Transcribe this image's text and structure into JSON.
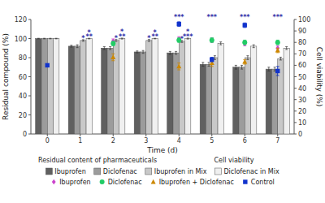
{
  "chart_data": {
    "type": "bar",
    "x": [
      0,
      1,
      2,
      3,
      4,
      5,
      6,
      7
    ],
    "xlabel": "Time (d)",
    "ylabel": "Residual compound (%)",
    "y2label": "Cell viability (%)",
    "xlim": [
      -0.5,
      7.5
    ],
    "xticks": [
      0,
      1,
      2,
      3,
      4,
      5,
      6,
      7
    ],
    "ylim": [
      0,
      120
    ],
    "yticks": [
      0,
      20,
      40,
      60,
      80,
      100,
      120
    ],
    "y2lim": [
      0,
      100
    ],
    "y2ticks": [
      0,
      10,
      20,
      30,
      40,
      50,
      60,
      70,
      80,
      90,
      100
    ],
    "grid": false,
    "legend": "bottom",
    "series": [
      {
        "name": "Ibuprofen",
        "type": "bar",
        "color": "#606060",
        "values": [
          100,
          92,
          90,
          86,
          85,
          73,
          70,
          68
        ],
        "errors": [
          0.3,
          1.0,
          1.5,
          1.0,
          1.5,
          2.0,
          2.0,
          2.0
        ]
      },
      {
        "name": "Diclofenac",
        "type": "bar",
        "color": "#9c9c9c",
        "values": [
          100,
          92,
          90,
          86,
          85,
          73,
          70,
          68
        ],
        "errors": [
          0.3,
          1.5,
          1.5,
          1.5,
          1.5,
          2.0,
          2.0,
          2.0
        ]
      },
      {
        "name": "Ibuprofen in Mix",
        "type": "bar",
        "color": "#c8c8c8",
        "values": [
          100,
          98,
          98,
          98,
          97,
          80,
          80,
          79
        ],
        "errors": [
          0.3,
          0.8,
          1.0,
          1.0,
          1.0,
          2.0,
          2.0,
          1.5
        ]
      },
      {
        "name": "Diclofenac in Mix",
        "type": "bar",
        "color": "#f0f0f0",
        "values": [
          100,
          100,
          100,
          100,
          100,
          95,
          92,
          90
        ],
        "errors": [
          0.3,
          0.3,
          0.5,
          0.3,
          0.5,
          1.5,
          1.5,
          1.5
        ]
      },
      {
        "name": "Ibuprofen",
        "type": "scatter",
        "axis": "y2",
        "marker": "diamond",
        "color": "#cc44cc",
        "x": [
          2,
          4,
          5,
          6,
          7
        ],
        "values": [
          81,
          83,
          82,
          79,
          75
        ],
        "errors": [
          2,
          2,
          2,
          2,
          2
        ]
      },
      {
        "name": "Diclofenac",
        "type": "scatter",
        "axis": "y2",
        "marker": "circle",
        "color": "#22cc66",
        "x": [
          2,
          4,
          5,
          6,
          7
        ],
        "values": [
          79,
          82,
          82,
          80,
          80
        ],
        "errors": [
          2,
          2,
          2,
          2,
          2
        ]
      },
      {
        "name": "Ibuprofen + Diclofenac",
        "type": "scatter",
        "axis": "y2",
        "marker": "triangle",
        "color": "#cc8800",
        "x": [
          2,
          4,
          5,
          6,
          7
        ],
        "values": [
          67,
          59,
          62,
          63,
          73
        ],
        "errors": [
          3,
          3,
          3,
          2,
          2
        ]
      },
      {
        "name": "Control",
        "type": "scatter",
        "axis": "y2",
        "marker": "square",
        "color": "#1133cc",
        "x": [
          0,
          4,
          5,
          6,
          7
        ],
        "values": [
          60,
          96,
          65,
          95,
          55
        ],
        "errors": [
          1,
          2,
          2,
          2,
          4
        ]
      }
    ],
    "annotations": [
      {
        "text": "**",
        "x": 1,
        "series": 3,
        "color": "#3333aa"
      },
      {
        "text": "**",
        "x": 2,
        "series": 3,
        "color": "#3333aa"
      },
      {
        "text": "**",
        "x": 3,
        "series": 3,
        "color": "#3333aa"
      },
      {
        "text": "***",
        "x": 4,
        "series": 3,
        "color": "#3333aa"
      },
      {
        "text": "*",
        "x": 1,
        "series": 2,
        "color": "#3333aa"
      },
      {
        "text": "*",
        "x": 1,
        "series": 3,
        "color": "#3333aa"
      },
      {
        "text": "*",
        "x": 2,
        "series": 2,
        "color": "#3333aa"
      },
      {
        "text": "*",
        "x": 2,
        "series": 3,
        "color": "#3333aa"
      },
      {
        "text": "*",
        "x": 3,
        "series": 2,
        "color": "#3333aa"
      },
      {
        "text": "*",
        "x": 3,
        "series": 3,
        "color": "#3333aa"
      },
      {
        "text": "*",
        "x": 4,
        "series": 2,
        "color": "#3333aa"
      },
      {
        "text": "*",
        "x": 4,
        "series": 3,
        "color": "#3333aa"
      },
      {
        "text": "***",
        "x": 5,
        "color": "#3333aa"
      },
      {
        "text": "***",
        "x": 6,
        "color": "#3333aa"
      },
      {
        "text": "***",
        "x": 7,
        "color": "#3333aa"
      },
      {
        "text": "***",
        "x": 4,
        "color": "#3333aa"
      }
    ],
    "section_labels": [
      "Residual content of pharmaceuticals",
      "Cell viability"
    ]
  }
}
